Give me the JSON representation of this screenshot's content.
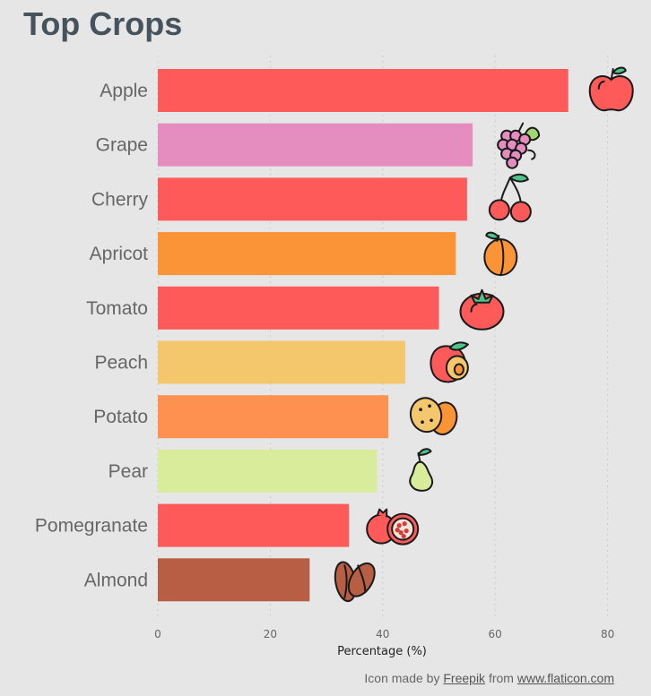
{
  "title": "Top Crops",
  "chart_data": {
    "type": "bar",
    "orientation": "horizontal",
    "title": "Top Crops",
    "xlabel": "Percentage (%)",
    "ylabel": "",
    "xlim": [
      0,
      85
    ],
    "xticks": [
      0,
      20,
      40,
      60,
      80
    ],
    "grid": "vertical dotted",
    "categories": [
      "Apple",
      "Grape",
      "Cherry",
      "Apricot",
      "Tomato",
      "Peach",
      "Potato",
      "Pear",
      "Pomegranate",
      "Almond"
    ],
    "values": [
      73,
      56,
      55,
      53,
      50,
      44,
      41,
      39,
      34,
      27
    ],
    "colors": [
      "#ff5a5a",
      "#e68dc0",
      "#ff5a5a",
      "#fb9337",
      "#ff5a5a",
      "#f5c76d",
      "#ff9150",
      "#d9ec9c",
      "#ff5a5a",
      "#b75e44"
    ],
    "icons": [
      "apple-icon",
      "grape-icon",
      "cherry-icon",
      "apricot-icon",
      "tomato-icon",
      "peach-icon",
      "potato-icon",
      "pear-icon",
      "pomegranate-icon",
      "almond-icon"
    ]
  },
  "credit": {
    "prefix": "Icon made by",
    "author": "Freepik",
    "middle": "from",
    "site": "www.flaticon.com"
  }
}
